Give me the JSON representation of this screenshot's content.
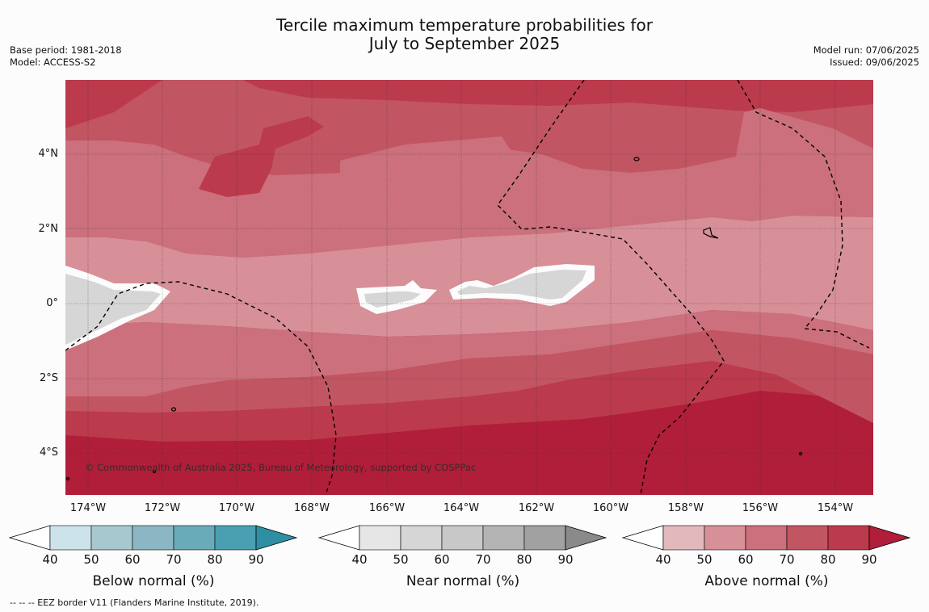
{
  "title": {
    "line1": "Tercile maximum temperature probabilities for",
    "line2": "July to September 2025"
  },
  "info_left": {
    "base_period": "Base period: 1981-2018",
    "model": "Model: ACCESS-S2"
  },
  "info_right": {
    "model_run": "Model run: 07/06/2025",
    "issued": "Issued: 09/06/2025"
  },
  "map": {
    "lat_labels": [
      "4°N",
      "2°N",
      "0°",
      "2°S",
      "4°S"
    ],
    "lon_labels": [
      "174°W",
      "172°W",
      "170°W",
      "168°W",
      "166°W",
      "164°W",
      "162°W",
      "160°W",
      "158°W",
      "156°W",
      "154°W"
    ],
    "copyright": "© Commonwealth of Australia 2025, Bureau of Meteorology, supported by COSPPac",
    "grid": true
  },
  "colorbars": [
    {
      "title": "Below normal (%)",
      "ticks": [
        "40",
        "50",
        "60",
        "70",
        "80",
        "90"
      ],
      "colors": [
        "#cce3e9",
        "#a8c8cf",
        "#8ab7c3",
        "#6aabb9",
        "#4aa0b0",
        "#2e8fa3"
      ]
    },
    {
      "title": "Near normal (%)",
      "ticks": [
        "40",
        "50",
        "60",
        "70",
        "80",
        "90"
      ],
      "colors": [
        "#e6e6e6",
        "#d6d6d6",
        "#c8c8c8",
        "#b4b4b4",
        "#a1a1a1",
        "#8a8a8a"
      ]
    },
    {
      "title": "Above normal (%)",
      "ticks": [
        "40",
        "50",
        "60",
        "70",
        "80",
        "90"
      ],
      "colors": [
        "#e2b8bd",
        "#d78f98",
        "#cb707c",
        "#c25562",
        "#bb3a4b",
        "#b01e3a"
      ]
    }
  ],
  "legend_note": "--  --  -- EEZ border V11 (Flanders Marine Institute, 2019)."
}
